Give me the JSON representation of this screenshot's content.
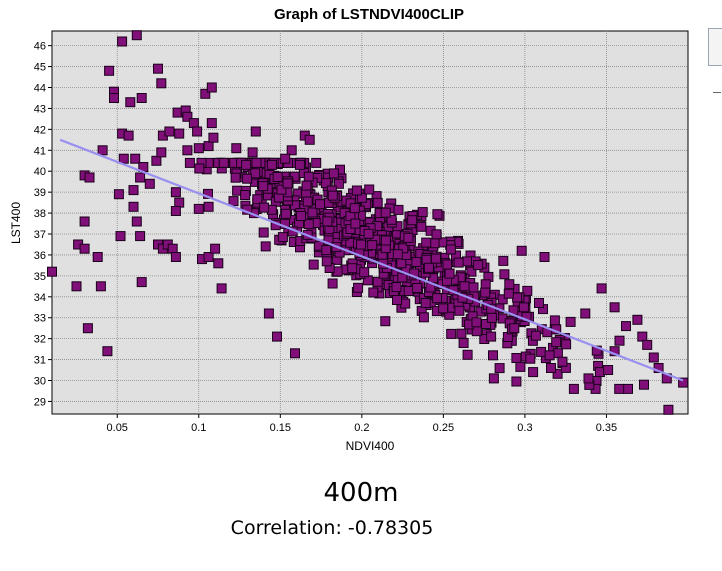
{
  "chart_data": {
    "type": "scatter",
    "title": "Graph of LSTNDVI400CLIP",
    "xlabel": "NDVI400",
    "ylabel": "LST400",
    "xlim": [
      0.01,
      0.4
    ],
    "ylim": [
      28.4,
      46.7
    ],
    "xticks": [
      0.05,
      0.1,
      0.15,
      0.2,
      0.25,
      0.3,
      0.35
    ],
    "xtick_labels": [
      "0.05",
      "0.1",
      "0.15",
      "0.2",
      "0.25",
      "0.3",
      "0.35"
    ],
    "yticks": [
      29,
      30,
      31,
      32,
      33,
      34,
      35,
      36,
      37,
      38,
      39,
      40,
      41,
      42,
      43,
      44,
      45,
      46
    ],
    "ytick_labels": [
      "29",
      "30",
      "31",
      "32",
      "33",
      "34",
      "35",
      "36",
      "37",
      "38",
      "39",
      "40",
      "41",
      "42",
      "43",
      "44",
      "45",
      "46"
    ],
    "grid": true,
    "legend": "none",
    "trend_line": {
      "x": [
        0.015,
        0.397
      ],
      "y": [
        41.5,
        30.0
      ]
    },
    "cluster": {
      "n": 780,
      "x_range": [
        0.1,
        0.37
      ],
      "slope": -42.5,
      "intercept": 45.4,
      "spread": 1.15
    },
    "points": [
      [
        0.062,
        46.5
      ],
      [
        0.053,
        46.2
      ],
      [
        0.045,
        44.8
      ],
      [
        0.048,
        43.8
      ],
      [
        0.048,
        43.5
      ],
      [
        0.058,
        43.3
      ],
      [
        0.065,
        43.5
      ],
      [
        0.075,
        44.9
      ],
      [
        0.077,
        44.2
      ],
      [
        0.087,
        42.8
      ],
      [
        0.092,
        42.9
      ],
      [
        0.093,
        42.6
      ],
      [
        0.097,
        42.3
      ],
      [
        0.104,
        43.7
      ],
      [
        0.108,
        44.0
      ],
      [
        0.108,
        42.3
      ],
      [
        0.078,
        41.7
      ],
      [
        0.082,
        41.9
      ],
      [
        0.088,
        41.8
      ],
      [
        0.099,
        41.9
      ],
      [
        0.053,
        41.8
      ],
      [
        0.057,
        41.7
      ],
      [
        0.041,
        41.0
      ],
      [
        0.054,
        40.6
      ],
      [
        0.061,
        40.6
      ],
      [
        0.066,
        40.2
      ],
      [
        0.064,
        39.7
      ],
      [
        0.074,
        40.5
      ],
      [
        0.077,
        40.9
      ],
      [
        0.093,
        41.0
      ],
      [
        0.1,
        41.1
      ],
      [
        0.106,
        41.2
      ],
      [
        0.109,
        41.6
      ],
      [
        0.03,
        39.8
      ],
      [
        0.033,
        39.7
      ],
      [
        0.051,
        38.9
      ],
      [
        0.06,
        39.1
      ],
      [
        0.07,
        39.4
      ],
      [
        0.086,
        39.0
      ],
      [
        0.088,
        38.5
      ],
      [
        0.06,
        38.3
      ],
      [
        0.062,
        37.6
      ],
      [
        0.086,
        38.1
      ],
      [
        0.1,
        38.2
      ],
      [
        0.106,
        38.3
      ],
      [
        0.03,
        37.6
      ],
      [
        0.052,
        36.9
      ],
      [
        0.064,
        36.9
      ],
      [
        0.075,
        36.5
      ],
      [
        0.078,
        36.3
      ],
      [
        0.026,
        36.5
      ],
      [
        0.03,
        36.3
      ],
      [
        0.038,
        35.9
      ],
      [
        0.081,
        36.5
      ],
      [
        0.084,
        36.3
      ],
      [
        0.01,
        35.2
      ],
      [
        0.025,
        34.5
      ],
      [
        0.04,
        34.5
      ],
      [
        0.065,
        34.7
      ],
      [
        0.086,
        35.9
      ],
      [
        0.102,
        35.8
      ],
      [
        0.106,
        35.9
      ],
      [
        0.11,
        36.3
      ],
      [
        0.114,
        34.4
      ],
      [
        0.112,
        35.6
      ],
      [
        0.032,
        32.5
      ],
      [
        0.044,
        31.4
      ],
      [
        0.159,
        31.3
      ],
      [
        0.148,
        32.1
      ],
      [
        0.143,
        33.2
      ],
      [
        0.362,
        32.6
      ],
      [
        0.369,
        32.9
      ],
      [
        0.372,
        32.1
      ],
      [
        0.375,
        31.7
      ],
      [
        0.379,
        31.1
      ],
      [
        0.382,
        30.6
      ],
      [
        0.387,
        30.1
      ],
      [
        0.397,
        29.9
      ],
      [
        0.373,
        29.8
      ],
      [
        0.388,
        28.6
      ],
      [
        0.157,
        41.0
      ],
      [
        0.165,
        41.7
      ],
      [
        0.168,
        41.5
      ],
      [
        0.153,
        40.6
      ],
      [
        0.162,
        40.3
      ],
      [
        0.172,
        40.4
      ],
      [
        0.135,
        41.9
      ],
      [
        0.133,
        40.9
      ],
      [
        0.123,
        41.1
      ],
      [
        0.129,
        40.3
      ],
      [
        0.281,
        30.1
      ],
      [
        0.305,
        30.4
      ],
      [
        0.316,
        30.6
      ],
      [
        0.323,
        30.9
      ],
      [
        0.339,
        30.1
      ],
      [
        0.346,
        30.4
      ],
      [
        0.351,
        30.5
      ],
      [
        0.355,
        31.4
      ],
      [
        0.358,
        31.9
      ],
      [
        0.328,
        32.8
      ],
      [
        0.347,
        34.4
      ],
      [
        0.355,
        33.5
      ],
      [
        0.337,
        33.2
      ],
      [
        0.312,
        35.9
      ],
      [
        0.298,
        36.2
      ]
    ]
  },
  "caption": {
    "resolution": "400m",
    "correlation": "Correlation: -0.78305"
  },
  "colors": {
    "marker_fill": "#800f79",
    "marker_stroke": "#1a001a",
    "plot_background": "#e0e0e0",
    "grid": "#8a8a8a",
    "trend_line": "#9a90f0"
  }
}
